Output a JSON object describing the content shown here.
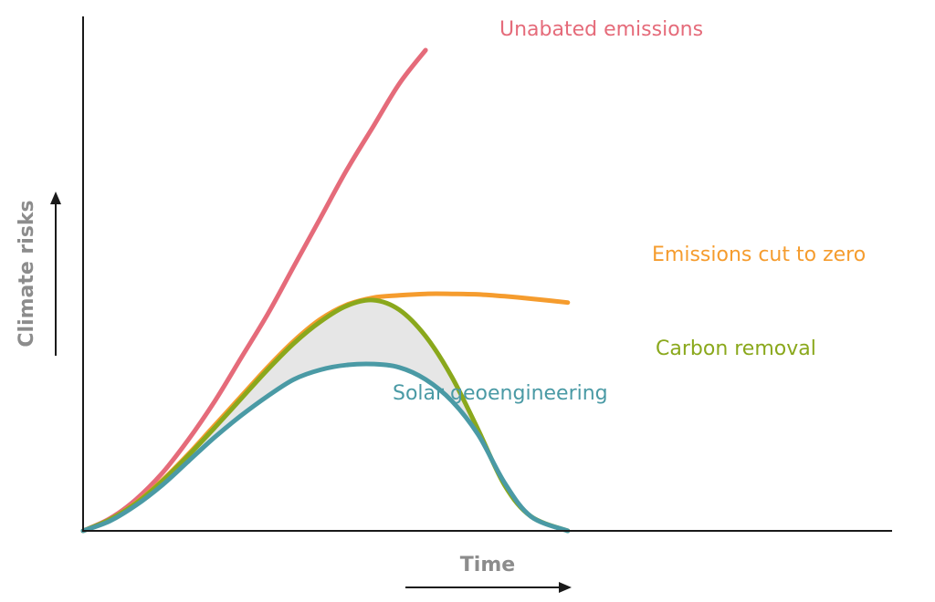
{
  "chart_data": {
    "type": "line",
    "title": "",
    "xlabel": "Time",
    "ylabel": "Climate risks",
    "xlim": [
      0,
      100
    ],
    "ylim": [
      0,
      100
    ],
    "grid": false,
    "legend": "none (direct labels)",
    "axis_ticks": "none",
    "series": [
      {
        "key": "unabated",
        "name": "Unabated emissions",
        "color": "#e56b7a",
        "x": [
          0,
          5,
          10,
          15,
          20,
          25,
          30,
          35,
          40,
          45,
          50,
          55,
          60,
          65
        ],
        "y": [
          0,
          2.5,
          6.5,
          12,
          19,
          27,
          36,
          45,
          55,
          65,
          75,
          84,
          93,
          100
        ]
      },
      {
        "key": "zero",
        "name": "Emissions cut to zero",
        "color": "#f59c2e",
        "x": [
          0,
          5,
          10,
          15,
          20,
          25,
          30,
          35,
          40,
          45,
          50,
          55,
          60,
          65,
          70,
          75,
          80,
          85,
          92
        ],
        "y": [
          0,
          2.3,
          5.8,
          10.5,
          16,
          22,
          28,
          34,
          39.5,
          44,
          47,
          48.5,
          49,
          49.3,
          49.3,
          49.2,
          48.8,
          48.3,
          47.5
        ]
      },
      {
        "key": "carbon",
        "name": "Carbon removal",
        "color": "#8aa81c",
        "x": [
          0,
          5,
          10,
          15,
          20,
          25,
          30,
          35,
          40,
          45,
          50,
          55,
          60,
          65,
          70,
          75,
          80,
          85,
          92
        ],
        "y": [
          0,
          2.3,
          5.7,
          10.3,
          15.7,
          21.5,
          27.5,
          33.5,
          39,
          43.5,
          46.8,
          48,
          46,
          40.5,
          32,
          21,
          9.5,
          3,
          0
        ]
      },
      {
        "key": "solar",
        "name": "Solar geoengineering",
        "color": "#4a9aa5",
        "x": [
          0,
          5,
          10,
          15,
          20,
          25,
          30,
          35,
          40,
          45,
          50,
          55,
          60,
          65,
          70,
          75,
          80,
          85,
          92
        ],
        "y": [
          0,
          2,
          5.3,
          9.5,
          14.5,
          19.5,
          24,
          28,
          31.5,
          33.5,
          34.5,
          34.7,
          34,
          31.5,
          27,
          20,
          10,
          3,
          0
        ]
      }
    ],
    "shaded_region": {
      "between": [
        "carbon",
        "solar"
      ],
      "color": "#e6e6e6"
    }
  }
}
